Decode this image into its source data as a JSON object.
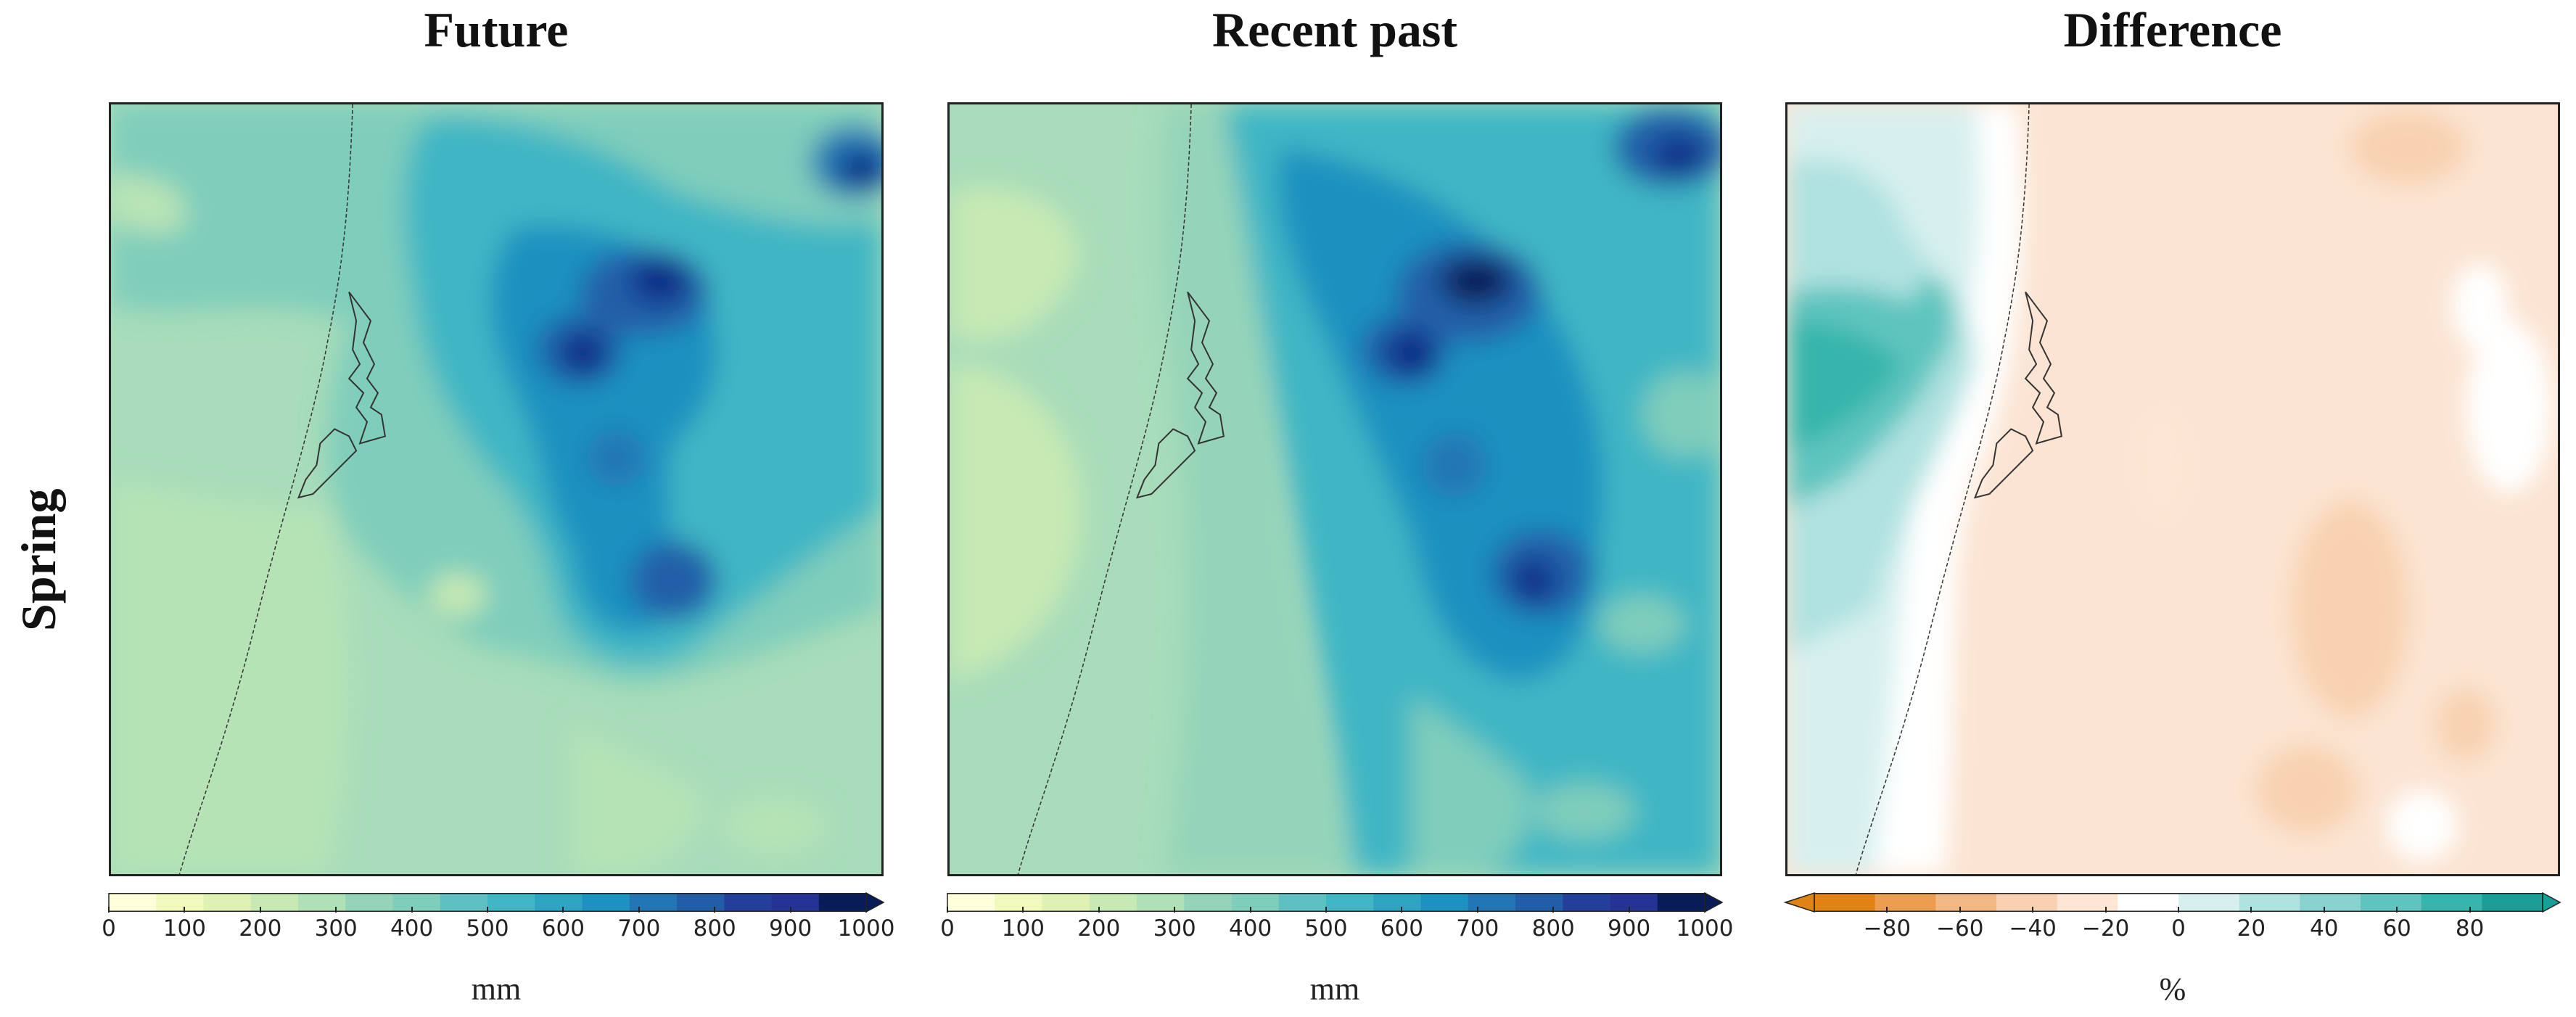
{
  "row_label": "Spring",
  "panels": [
    {
      "title": "Future",
      "unit": "mm",
      "ticks": [
        "0",
        "100",
        "200",
        "300",
        "400",
        "500",
        "600",
        "700",
        "800",
        "900",
        "1000"
      ]
    },
    {
      "title": "Recent past",
      "unit": "mm",
      "ticks": [
        "0",
        "100",
        "200",
        "300",
        "400",
        "500",
        "600",
        "700",
        "800",
        "900",
        "1000"
      ]
    },
    {
      "title": "Difference",
      "unit": "%",
      "ticks": [
        "−80",
        "−60",
        "−40",
        "−20",
        "0",
        "20",
        "40",
        "60",
        "80"
      ]
    }
  ],
  "colorscale_precip": [
    "#ffffd9",
    "#f1f9bd",
    "#dff2b4",
    "#c7e9b4",
    "#b0e0b6",
    "#95d4b9",
    "#7fcdbb",
    "#5ec0c0",
    "#41b6c4",
    "#2fa3c2",
    "#1d91c0",
    "#2276b4",
    "#225ea8",
    "#243f99",
    "#253494",
    "#081d58"
  ],
  "colorscale_diff": [
    "#e08214",
    "#eb9e50",
    "#f2b883",
    "#f8d2b0",
    "#fde6d3",
    "#ffffff",
    "#d7f0ef",
    "#b0e2e0",
    "#88d3cf",
    "#5fc4be",
    "#35b5ac",
    "#1a9e97"
  ],
  "colors": {
    "precip_base": "#a8dcba",
    "precip_mid": "#7fcdbb",
    "precip_teal": "#41b6c4",
    "precip_blue": "#1d91c0",
    "precip_dark": "#225ea8",
    "precip_darkest": "#0c2c84",
    "diff_orange": "#f8d9c2",
    "diff_white": "#ffffff",
    "diff_teal": "#7fd0cc"
  }
}
